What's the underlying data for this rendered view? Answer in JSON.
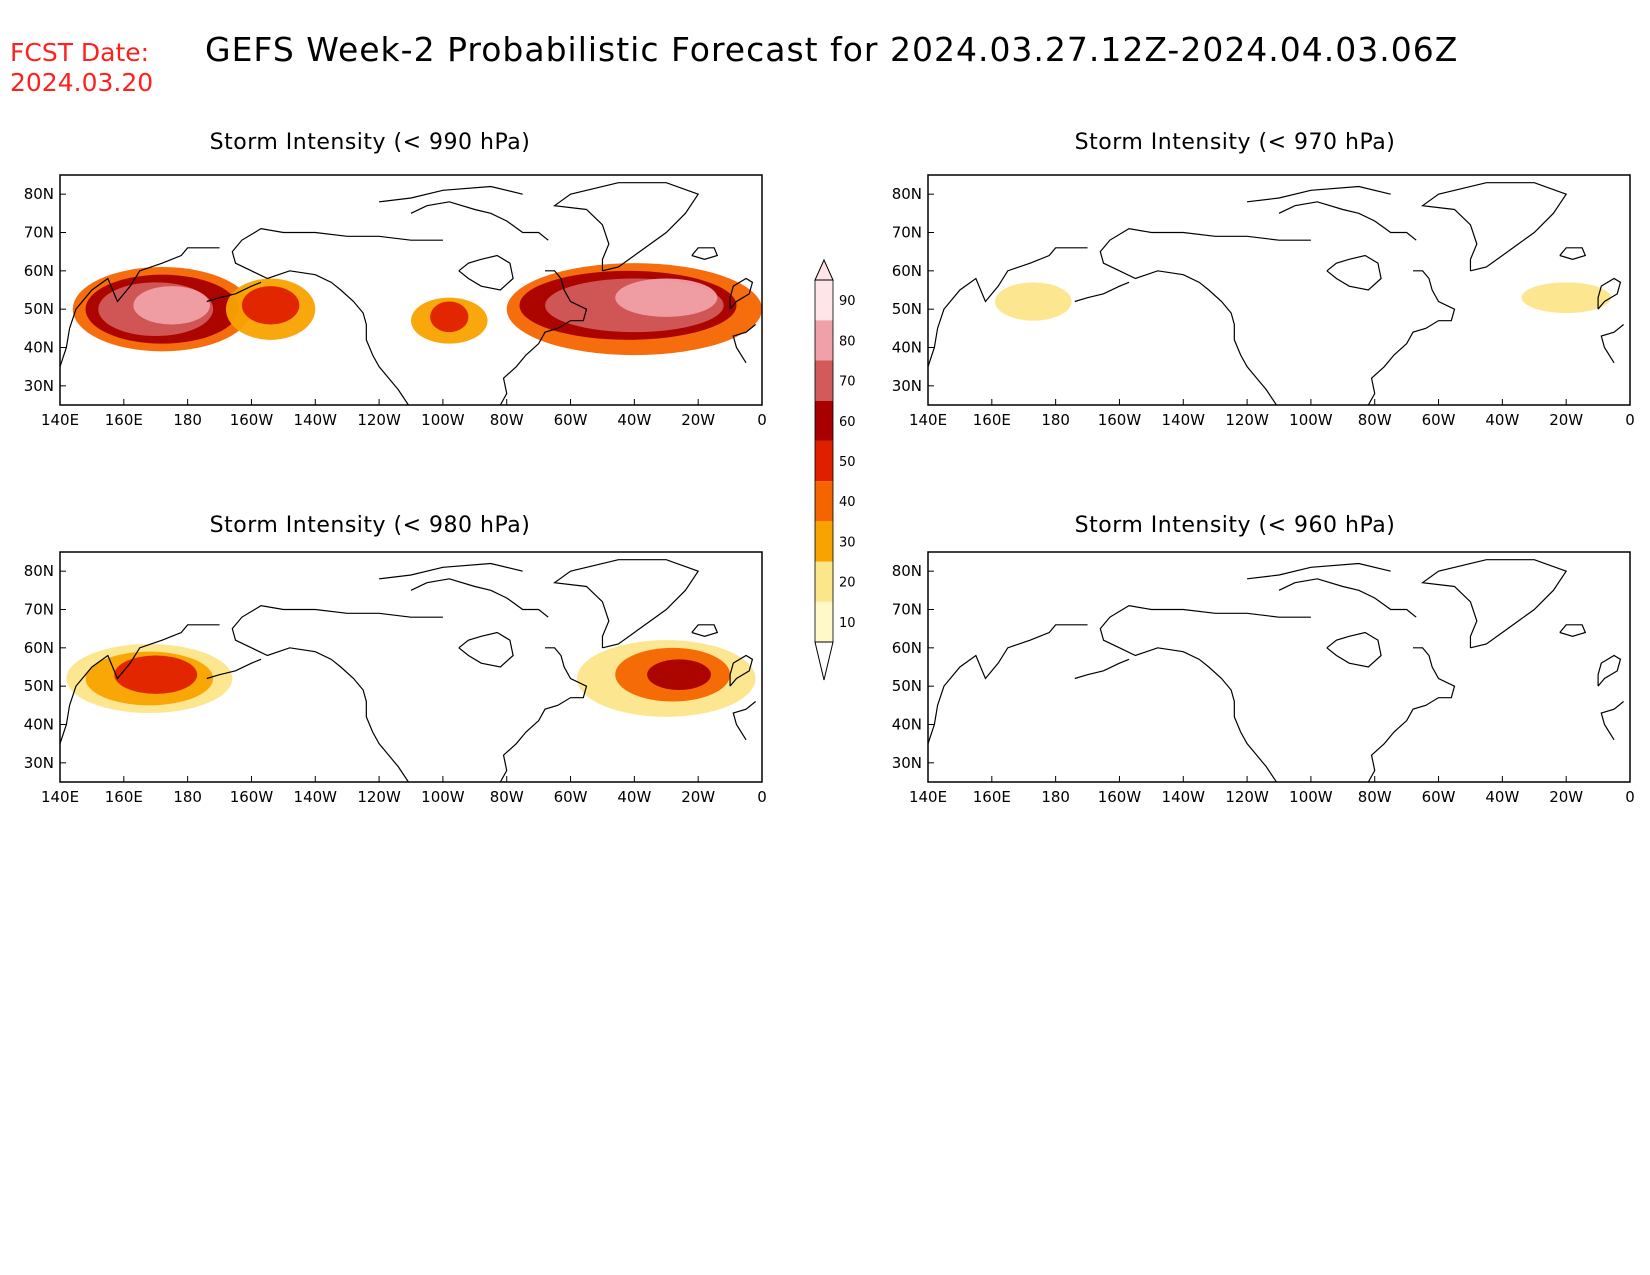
{
  "header": {
    "fcst_label": "FCST Date:",
    "fcst_date": "2024.03.20",
    "title": "GEFS Week-2 Probabilistic Forecast for 2024.03.27.12Z-2024.04.03.06Z"
  },
  "colors": {
    "header_red": "#ff2020",
    "levels": [
      "#fff8c8",
      "#fce68a",
      "#f8a300",
      "#f46500",
      "#e01f00",
      "#a80000",
      "#d25a5a",
      "#f0a0a8",
      "#ffe4e8"
    ]
  },
  "map_axes": {
    "lat_labels": [
      "80N",
      "70N",
      "60N",
      "50N",
      "40N",
      "30N"
    ],
    "lat_values": [
      80,
      70,
      60,
      50,
      40,
      30
    ],
    "lon_labels": [
      "140E",
      "160E",
      "180",
      "160W",
      "140W",
      "120W",
      "100W",
      "80W",
      "60W",
      "40W",
      "20W",
      "0"
    ],
    "lon_range": [
      140,
      360
    ],
    "lat_range": [
      25,
      85
    ]
  },
  "colorbar": {
    "levels": [
      "10",
      "20",
      "30",
      "40",
      "50",
      "60",
      "70",
      "80",
      "90"
    ],
    "level_values": [
      10,
      20,
      30,
      40,
      50,
      60,
      70,
      80,
      90
    ]
  },
  "panels": [
    {
      "id": "p990",
      "title": "Storm Intensity (< 990 hPa)",
      "blobs": [
        {
          "lon": 172,
          "lat": 50,
          "rx": 28,
          "ry": 11,
          "level": 3
        },
        {
          "lon": 172,
          "lat": 50,
          "rx": 24,
          "ry": 9,
          "level": 5
        },
        {
          "lon": 170,
          "lat": 50,
          "rx": 18,
          "ry": 7,
          "level": 6
        },
        {
          "lon": 175,
          "lat": 51,
          "rx": 12,
          "ry": 5,
          "level": 7
        },
        {
          "lon": 206,
          "lat": 50,
          "rx": 14,
          "ry": 8,
          "level": 2
        },
        {
          "lon": 206,
          "lat": 51,
          "rx": 9,
          "ry": 5,
          "level": 4
        },
        {
          "lon": 262,
          "lat": 47,
          "rx": 12,
          "ry": 6,
          "level": 2
        },
        {
          "lon": 262,
          "lat": 48,
          "rx": 6,
          "ry": 4,
          "level": 4
        },
        {
          "lon": 320,
          "lat": 50,
          "rx": 40,
          "ry": 12,
          "level": 3
        },
        {
          "lon": 318,
          "lat": 51,
          "rx": 34,
          "ry": 9,
          "level": 5
        },
        {
          "lon": 320,
          "lat": 51,
          "rx": 28,
          "ry": 7,
          "level": 6
        },
        {
          "lon": 330,
          "lat": 53,
          "rx": 16,
          "ry": 5,
          "level": 7
        }
      ]
    },
    {
      "id": "p970",
      "title": "Storm Intensity (< 970 hPa)",
      "blobs": [
        {
          "lon": 173,
          "lat": 52,
          "rx": 12,
          "ry": 5,
          "level": 1
        },
        {
          "lon": 340,
          "lat": 53,
          "rx": 14,
          "ry": 4,
          "level": 1
        }
      ]
    },
    {
      "id": "p980",
      "title": "Storm Intensity (< 980 hPa)",
      "blobs": [
        {
          "lon": 168,
          "lat": 52,
          "rx": 26,
          "ry": 9,
          "level": 1
        },
        {
          "lon": 168,
          "lat": 52,
          "rx": 20,
          "ry": 7,
          "level": 2
        },
        {
          "lon": 170,
          "lat": 53,
          "rx": 13,
          "ry": 5,
          "level": 4
        },
        {
          "lon": 330,
          "lat": 52,
          "rx": 28,
          "ry": 10,
          "level": 1
        },
        {
          "lon": 332,
          "lat": 53,
          "rx": 18,
          "ry": 7,
          "level": 3
        },
        {
          "lon": 334,
          "lat": 53,
          "rx": 10,
          "ry": 4,
          "level": 5
        }
      ]
    },
    {
      "id": "p960",
      "title": "Storm Intensity (< 960 hPa)",
      "blobs": []
    }
  ]
}
